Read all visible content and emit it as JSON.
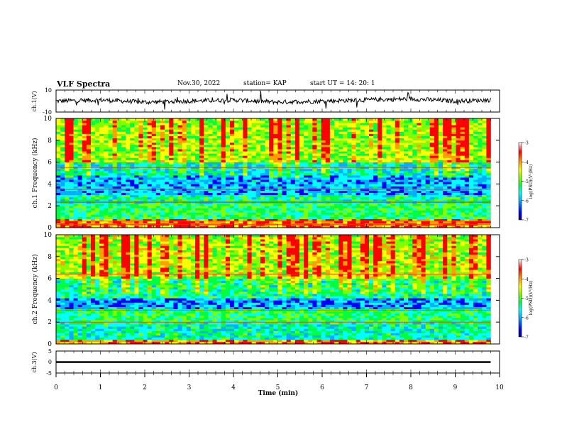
{
  "header": {
    "title": "VLF Spectra",
    "date": "Nov.30, 2022",
    "station": "station= KAP",
    "start": "start  UT =   14: 20: 1"
  },
  "colors": {
    "spectrum_scale": [
      "#000090",
      "#0000ff",
      "#00b0ff",
      "#00ffff",
      "#00ff40",
      "#80ff00",
      "#ffff00",
      "#ffa000",
      "#ff0000",
      "#ffffff"
    ],
    "trace": "#000000"
  },
  "chart_data": [
    {
      "type": "line",
      "name": "ch1-waveform",
      "ylabel": "ch.1(V)",
      "ylim": [
        -10,
        10
      ],
      "yticks": [
        "10",
        "-10"
      ],
      "xlim": [
        0,
        10
      ],
      "description_values": "noisy waveform centered near 0 V, amplitude about 3 V with spikes",
      "x": [
        0,
        1,
        2,
        3,
        4,
        5,
        6,
        7,
        8,
        9,
        9.8
      ],
      "y": [
        0,
        1,
        -1,
        0,
        1,
        -1,
        0,
        1,
        2,
        0,
        1
      ]
    },
    {
      "type": "heatmap",
      "name": "ch1-spectrogram",
      "ylabel": "ch.1 Frequency (kHz)",
      "ylim": [
        0,
        10
      ],
      "yticks": [
        "0",
        "2",
        "4",
        "6",
        "8",
        "10"
      ],
      "xlim": [
        0,
        9.8
      ],
      "colorbar": {
        "label": "log(PSD)(V²/Hz)",
        "ticks": [
          "-3",
          "-4",
          "-5",
          "-6",
          "-7"
        ],
        "range": [
          -7,
          -3
        ]
      },
      "bands_khz": [
        {
          "from": 0,
          "to": 0.8,
          "level": -3.5
        },
        {
          "from": 0.8,
          "to": 2.2,
          "level": -5.0
        },
        {
          "from": 2.2,
          "to": 3.0,
          "level": -5.2
        },
        {
          "from": 3.0,
          "to": 4.8,
          "level": -5.8
        },
        {
          "from": 4.8,
          "to": 6.0,
          "level": -5.5
        },
        {
          "from": 6.0,
          "to": 10,
          "level": -4.5
        }
      ],
      "lines_khz": [
        0.3,
        0.6,
        2.3,
        2.4,
        3.5,
        5.5
      ]
    },
    {
      "type": "heatmap",
      "name": "ch2-spectrogram",
      "ylabel": "ch.2 Frequency (kHz)",
      "ylim": [
        0,
        10
      ],
      "yticks": [
        "0",
        "2",
        "4",
        "6",
        "8",
        "10"
      ],
      "xlim": [
        0,
        9.8
      ],
      "colorbar": {
        "label": "log(PSD)(V²/Hz)",
        "ticks": [
          "-3",
          "-4",
          "-5",
          "-6",
          "-7"
        ],
        "range": [
          -7,
          -3
        ]
      },
      "bands_khz": [
        {
          "from": 0,
          "to": 0.5,
          "level": -3.6
        },
        {
          "from": 0.5,
          "to": 2.0,
          "level": -5.3
        },
        {
          "from": 2.0,
          "to": 3.2,
          "level": -5.0
        },
        {
          "from": 3.2,
          "to": 4.2,
          "level": -5.9
        },
        {
          "from": 4.2,
          "to": 6.0,
          "level": -5.2
        },
        {
          "from": 6.0,
          "to": 10,
          "level": -4.4
        }
      ],
      "lines_khz": [
        2.0,
        3.1,
        6.4
      ]
    },
    {
      "type": "line",
      "name": "ch3-waveform",
      "ylabel": "ch.3(V)",
      "ylim": [
        -5,
        5
      ],
      "yticks": [
        "5",
        "0",
        "-5"
      ],
      "xlim": [
        0,
        10
      ],
      "x": [
        0,
        9.8
      ],
      "y": [
        0,
        0
      ],
      "band_halfwidth_v": 0.4
    }
  ],
  "xaxis": {
    "label": "Time (min)",
    "ticks": [
      "0",
      "1",
      "2",
      "3",
      "4",
      "5",
      "6",
      "7",
      "8",
      "9",
      "10"
    ]
  }
}
